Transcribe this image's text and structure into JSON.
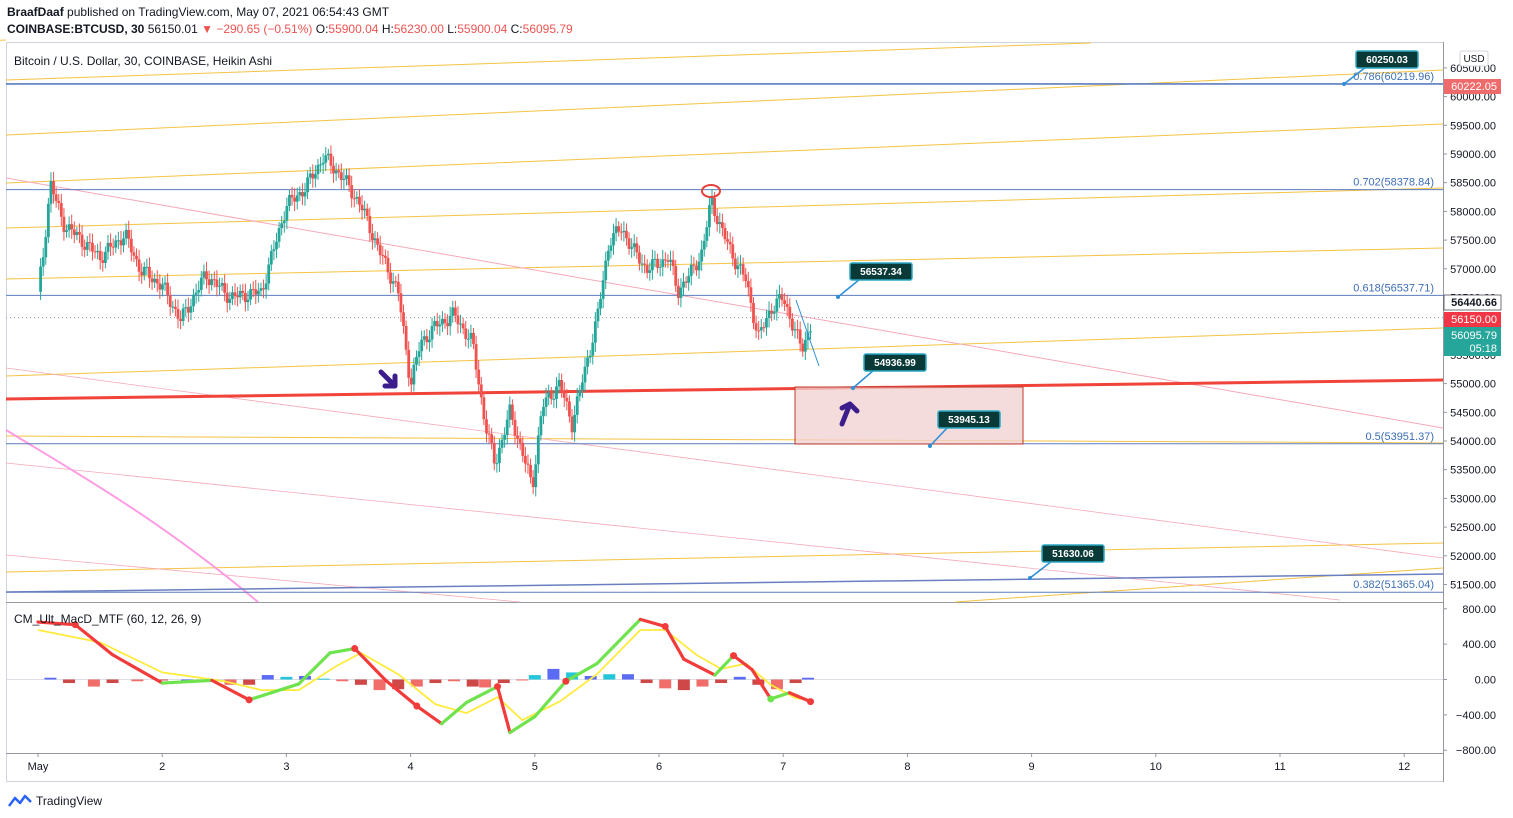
{
  "header": {
    "author": "BraafDaaf",
    "published_text": "published on TradingView.com, May 07, 2021 06:54:43 GMT",
    "symbol": "COINBASE:BTCUSD, 30",
    "last": "56150.01",
    "change": "▼ −290.65 (−0.51%)",
    "o_label": "O:",
    "o_value": "55900.04",
    "h_label": "H:",
    "h_value": "56230.00",
    "l_label": "L:",
    "l_value": "55900.04",
    "c_label": "C:",
    "c_value": "56095.79"
  },
  "chart_title": "Bitcoin / U.S. Dollar, 30, COINBASE, Heikin Ashi",
  "currency": "USD",
  "footer": {
    "brand": "TradingView"
  },
  "colors": {
    "bull": "#26a69a",
    "bear": "#ef5350",
    "channel": "#f5c342",
    "fib": "#5b7dbf",
    "trend": "#f0443a",
    "zone": "#f2d0d0",
    "callout": "#0a3a38",
    "arrow": "#3b1e8c",
    "pink": "#ff9be2"
  },
  "chart_data": {
    "type": "candlestick",
    "title": "Bitcoin / U.S. Dollar, 30, COINBASE, Heikin Ashi",
    "ylim": [
      51300,
      60700
    ],
    "x_ticks": [
      "May",
      "2",
      "3",
      "4",
      "5",
      "6",
      "7",
      "8",
      "9",
      "10",
      "11",
      "12"
    ],
    "y_ticks": [
      "60500.00",
      "60000.00",
      "59500.00",
      "59000.00",
      "58500.00",
      "58000.00",
      "57500.00",
      "57000.00",
      "56500.00",
      "56000.00",
      "55500.00",
      "55000.00",
      "54500.00",
      "54000.00",
      "53500.00",
      "53000.00",
      "52500.00",
      "52000.00",
      "51500.00"
    ],
    "price_path": [
      [
        0,
        56600
      ],
      [
        0.04,
        57200
      ],
      [
        0.1,
        58500
      ],
      [
        0.2,
        57800
      ],
      [
        0.35,
        57500
      ],
      [
        0.5,
        57200
      ],
      [
        0.7,
        57600
      ],
      [
        0.82,
        57000
      ],
      [
        1.0,
        56700
      ],
      [
        1.15,
        56100
      ],
      [
        1.35,
        56900
      ],
      [
        1.55,
        56500
      ],
      [
        1.8,
        56600
      ],
      [
        2.0,
        58100
      ],
      [
        2.15,
        58400
      ],
      [
        2.3,
        58950
      ],
      [
        2.45,
        58600
      ],
      [
        2.6,
        58100
      ],
      [
        2.75,
        57300
      ],
      [
        2.9,
        56600
      ],
      [
        3.0,
        55000
      ],
      [
        3.08,
        55700
      ],
      [
        3.2,
        56000
      ],
      [
        3.35,
        56200
      ],
      [
        3.5,
        55700
      ],
      [
        3.6,
        54300
      ],
      [
        3.68,
        53600
      ],
      [
        3.8,
        54500
      ],
      [
        3.9,
        53800
      ],
      [
        3.98,
        53200
      ],
      [
        4.06,
        54600
      ],
      [
        4.2,
        55000
      ],
      [
        4.3,
        54300
      ],
      [
        4.4,
        55200
      ],
      [
        4.5,
        56100
      ],
      [
        4.6,
        57500
      ],
      [
        4.7,
        57700
      ],
      [
        4.8,
        57300
      ],
      [
        4.9,
        57000
      ],
      [
        5.0,
        57100
      ],
      [
        5.08,
        57200
      ],
      [
        5.15,
        56600
      ],
      [
        5.25,
        56900
      ],
      [
        5.35,
        57300
      ],
      [
        5.42,
        58200
      ],
      [
        5.5,
        57700
      ],
      [
        5.6,
        57200
      ],
      [
        5.7,
        56800
      ],
      [
        5.8,
        55800
      ],
      [
        5.9,
        56300
      ],
      [
        6.0,
        56500
      ],
      [
        6.08,
        56000
      ],
      [
        6.15,
        55600
      ],
      [
        6.22,
        56000
      ]
    ],
    "price_labels": [
      {
        "text": "60222.05",
        "kind": "level"
      },
      {
        "text": "56440.66",
        "kind": "high"
      },
      {
        "text": "56150.00",
        "kind": "last"
      },
      {
        "text": "56095.79",
        "kind": "close"
      },
      {
        "text": "05:18",
        "kind": "countdown"
      }
    ],
    "fib_levels": [
      {
        "label": "0.786(60219.96)",
        "price": 60219.96
      },
      {
        "label": "0.702(58378.84)",
        "price": 58378.84
      },
      {
        "label": "0.618(56537.71)",
        "price": 56537.71
      },
      {
        "label": "0.5(53951.37)",
        "price": 53951.37
      },
      {
        "label": "0.382(51365.04)",
        "price": 51365.04
      }
    ],
    "callouts": [
      {
        "text": "60250.03",
        "price": 60219.96,
        "day": 10.9
      },
      {
        "text": "56537.34",
        "price": 56537.71,
        "day": 6.45
      },
      {
        "text": "54936.99",
        "price": 54936.99,
        "day": 6.55
      },
      {
        "text": "53945.13",
        "price": 53945.13,
        "day": 7.15
      },
      {
        "text": "51630.06",
        "price": 51630.06,
        "day": 7.96
      }
    ],
    "indicator": {
      "name": "CM_Ult_MacD_MTF (60, 12, 26, 9)",
      "ylim": [
        -800,
        800
      ],
      "y_ticks": [
        "800.00",
        "400.00",
        "0.00",
        "−400.00",
        "−800.00"
      ],
      "macd": [
        [
          0,
          650
        ],
        [
          0.3,
          620
        ],
        [
          0.6,
          280
        ],
        [
          1.0,
          -40
        ],
        [
          1.4,
          -10
        ],
        [
          1.7,
          -230
        ],
        [
          2.1,
          -50
        ],
        [
          2.35,
          300
        ],
        [
          2.55,
          350
        ],
        [
          2.8,
          -10
        ],
        [
          3.05,
          -300
        ],
        [
          3.25,
          -500
        ],
        [
          3.45,
          -260
        ],
        [
          3.7,
          -80
        ],
        [
          3.8,
          -600
        ],
        [
          4.0,
          -420
        ],
        [
          4.25,
          -20
        ],
        [
          4.5,
          180
        ],
        [
          4.85,
          680
        ],
        [
          5.05,
          600
        ],
        [
          5.2,
          230
        ],
        [
          5.45,
          50
        ],
        [
          5.6,
          270
        ],
        [
          5.75,
          110
        ],
        [
          5.9,
          -220
        ],
        [
          6.05,
          -150
        ],
        [
          6.22,
          -250
        ]
      ],
      "signal": [
        [
          0,
          560
        ],
        [
          0.5,
          420
        ],
        [
          1.0,
          80
        ],
        [
          1.5,
          -20
        ],
        [
          1.8,
          -120
        ],
        [
          2.1,
          -120
        ],
        [
          2.4,
          150
        ],
        [
          2.6,
          300
        ],
        [
          2.9,
          60
        ],
        [
          3.2,
          -280
        ],
        [
          3.45,
          -380
        ],
        [
          3.7,
          -200
        ],
        [
          3.9,
          -460
        ],
        [
          4.2,
          -250
        ],
        [
          4.5,
          60
        ],
        [
          4.85,
          560
        ],
        [
          5.05,
          560
        ],
        [
          5.3,
          280
        ],
        [
          5.5,
          120
        ],
        [
          5.7,
          180
        ],
        [
          5.9,
          -60
        ],
        [
          6.1,
          -210
        ],
        [
          6.22,
          -230
        ]
      ],
      "histogram": [
        [
          0.1,
          20
        ],
        [
          0.25,
          -40
        ],
        [
          0.45,
          -80
        ],
        [
          0.6,
          -40
        ],
        [
          0.8,
          -20
        ],
        [
          1.0,
          -10
        ],
        [
          1.2,
          0
        ],
        [
          1.4,
          -20
        ],
        [
          1.55,
          -60
        ],
        [
          1.7,
          -60
        ],
        [
          1.85,
          50
        ],
        [
          2.0,
          30
        ],
        [
          2.15,
          40
        ],
        [
          2.3,
          10
        ],
        [
          2.45,
          -20
        ],
        [
          2.6,
          -60
        ],
        [
          2.75,
          -120
        ],
        [
          2.9,
          -110
        ],
        [
          3.05,
          -80
        ],
        [
          3.2,
          -40
        ],
        [
          3.35,
          -20
        ],
        [
          3.5,
          -80
        ],
        [
          3.6,
          -90
        ],
        [
          3.75,
          -40
        ],
        [
          3.9,
          -10
        ],
        [
          4.0,
          50
        ],
        [
          4.15,
          120
        ],
        [
          4.3,
          80
        ],
        [
          4.45,
          40
        ],
        [
          4.6,
          60
        ],
        [
          4.75,
          60
        ],
        [
          4.9,
          -40
        ],
        [
          5.05,
          -100
        ],
        [
          5.2,
          -120
        ],
        [
          5.35,
          -80
        ],
        [
          5.5,
          -40
        ],
        [
          5.65,
          30
        ],
        [
          5.8,
          -60
        ],
        [
          5.95,
          -110
        ],
        [
          6.1,
          -40
        ],
        [
          6.2,
          20
        ]
      ]
    }
  }
}
